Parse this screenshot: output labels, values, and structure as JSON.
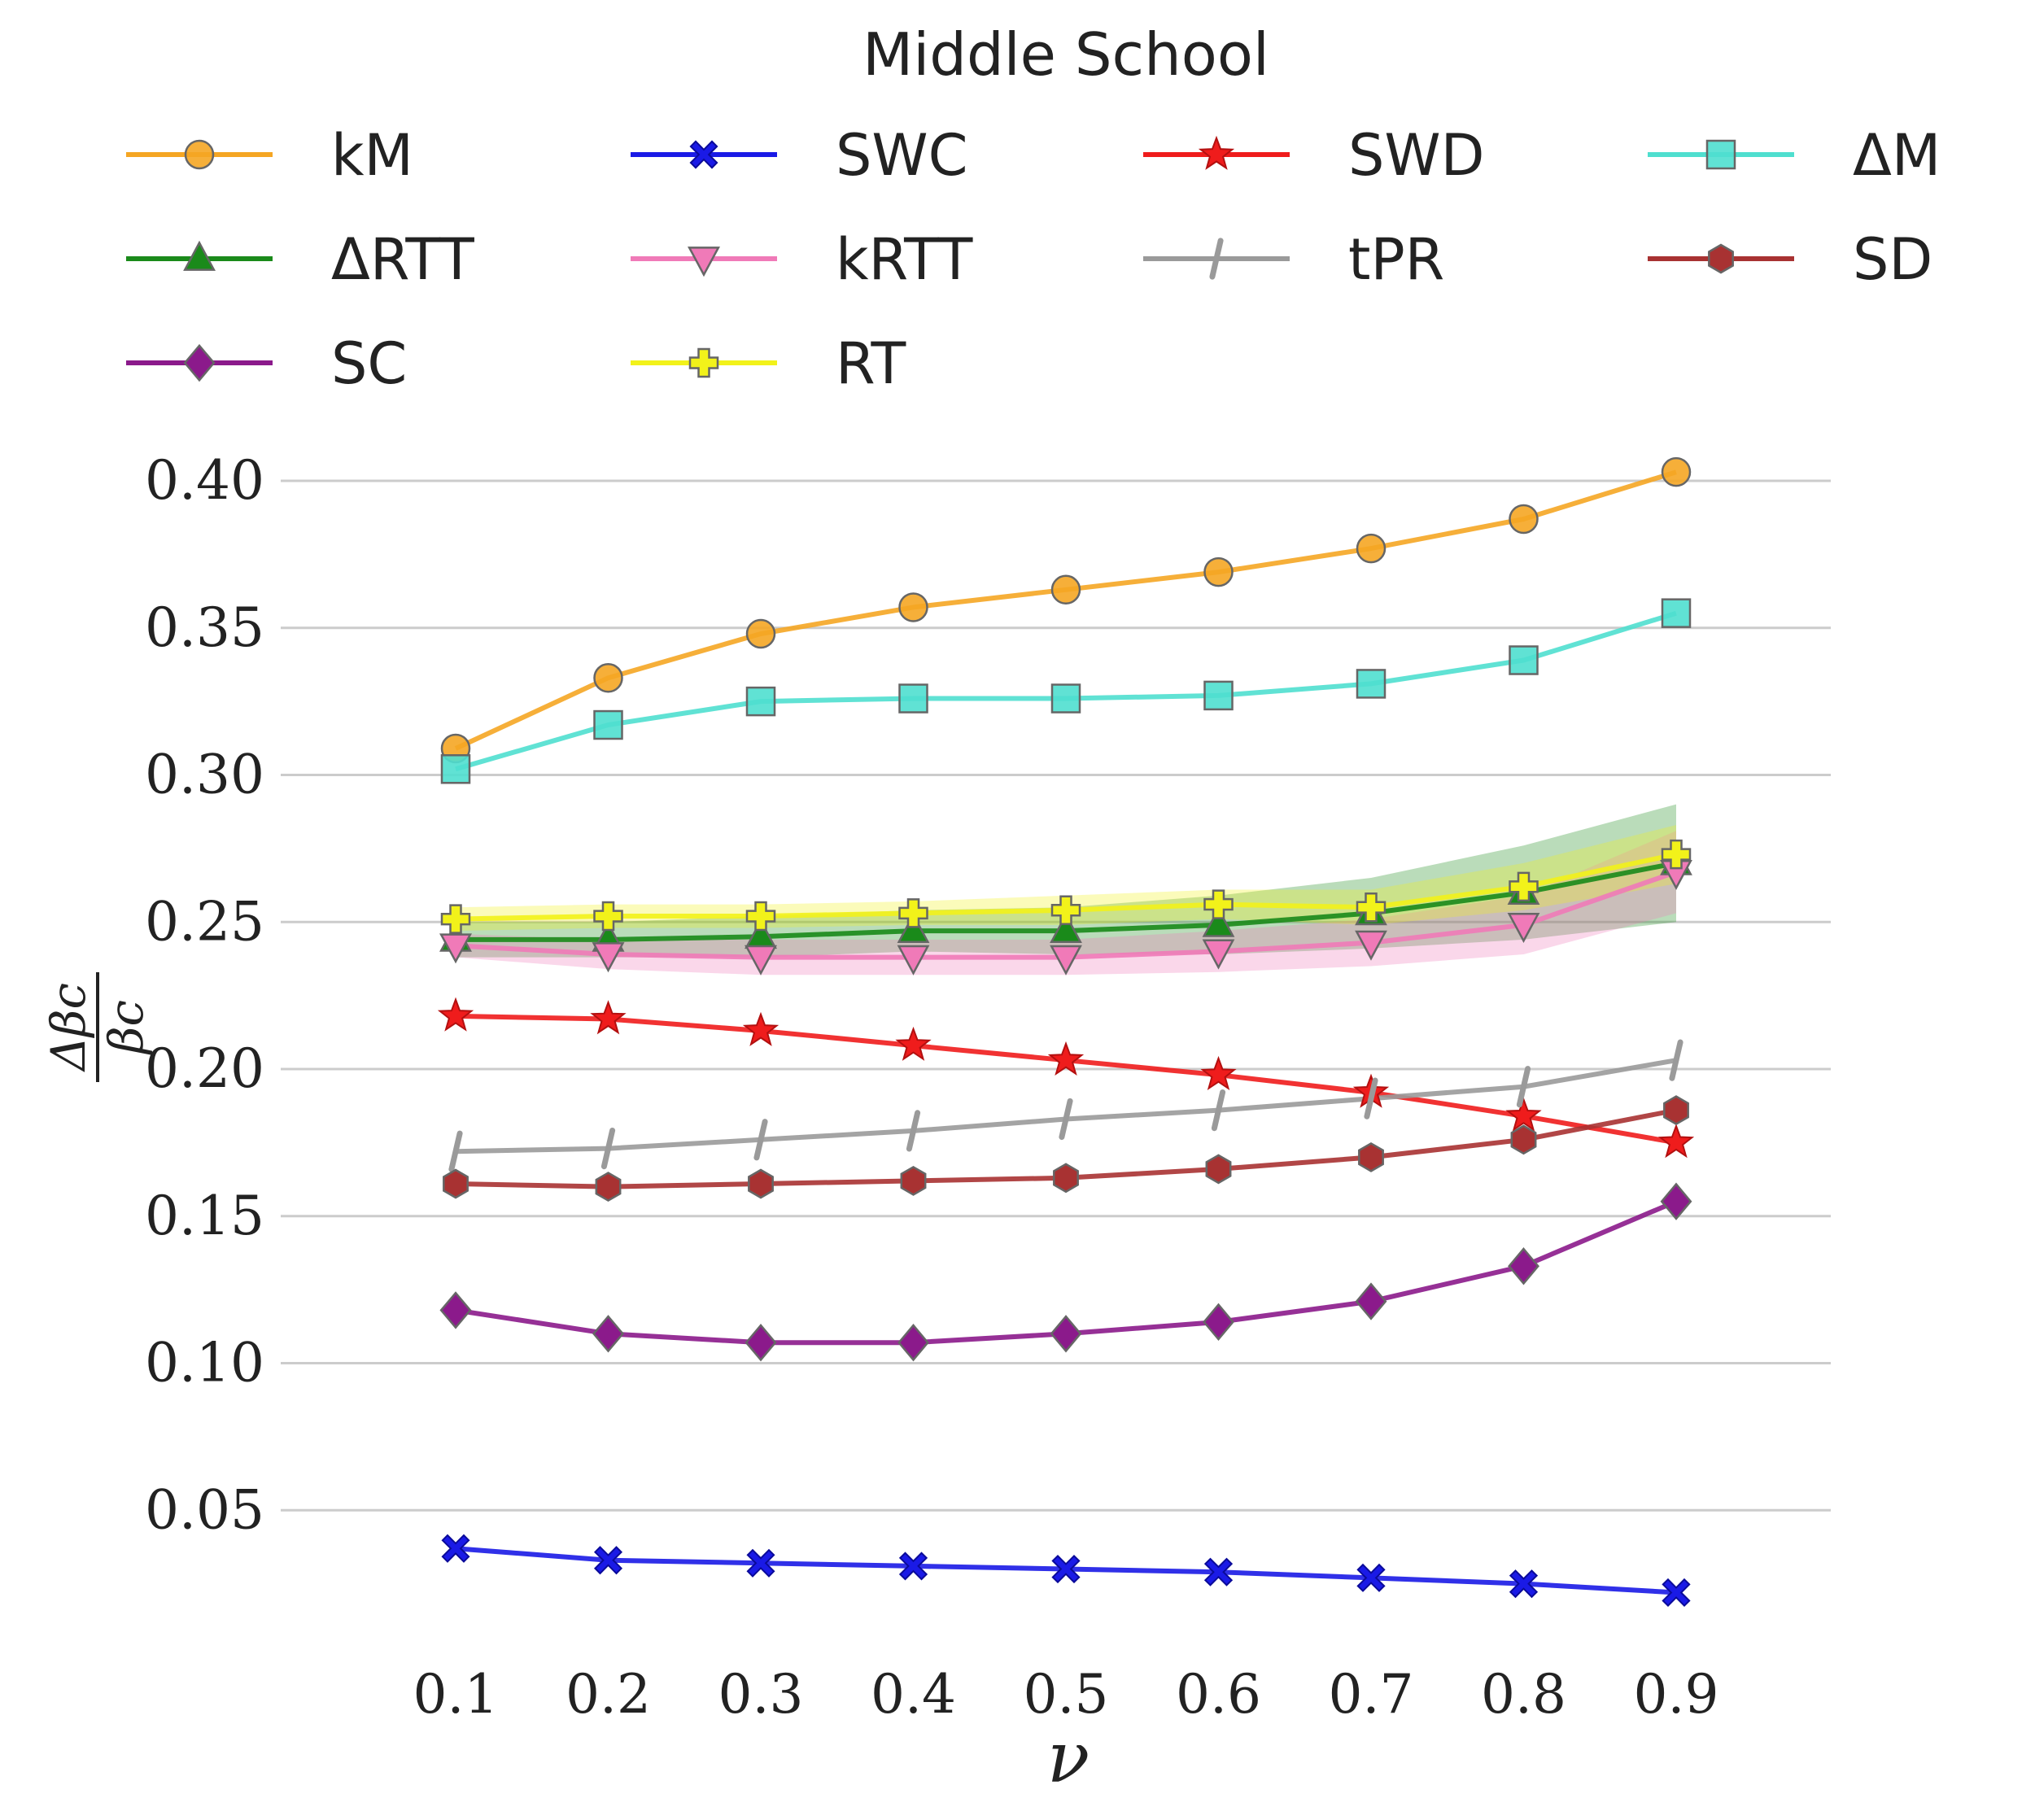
{
  "chart_data": {
    "type": "line",
    "title": "Middle School",
    "xlabel": "ν",
    "ylabel": "Δβc / βc",
    "ylabel_num": "Δβc",
    "ylabel_den": "βc",
    "x": [
      0.1,
      0.2,
      0.3,
      0.4,
      0.5,
      0.6,
      0.7,
      0.8,
      0.9
    ],
    "xtick_labels": [
      "0.1",
      "0.2",
      "0.3",
      "0.4",
      "0.5",
      "0.6",
      "0.7",
      "0.8",
      "0.9"
    ],
    "yticks": [
      0.05,
      0.1,
      0.15,
      0.2,
      0.25,
      0.3,
      0.35,
      0.4
    ],
    "ytick_labels": [
      "0.05",
      "0.10",
      "0.15",
      "0.20",
      "0.25",
      "0.30",
      "0.35",
      "0.40"
    ],
    "ylim": [
      0.0,
      0.415
    ],
    "grid": "horizontal",
    "legend_position": "top",
    "series": [
      {
        "name": "kM",
        "color": "#f5a623",
        "marker": "circle",
        "values": [
          0.309,
          0.333,
          0.348,
          0.357,
          0.363,
          0.369,
          0.377,
          0.387,
          0.403
        ]
      },
      {
        "name": "ΔRTT",
        "color": "#1a8a1a",
        "marker": "triangle-up",
        "values": [
          0.244,
          0.244,
          0.245,
          0.247,
          0.247,
          0.249,
          0.253,
          0.26,
          0.27
        ],
        "band": [
          0.006,
          0.006,
          0.007,
          0.007,
          0.008,
          0.01,
          0.012,
          0.016,
          0.02
        ]
      },
      {
        "name": "SC",
        "color": "#8b1a8b",
        "marker": "diamond",
        "values": [
          0.118,
          0.11,
          0.107,
          0.107,
          0.11,
          0.114,
          0.121,
          0.133,
          0.155
        ]
      },
      {
        "name": "SWC",
        "color": "#1a1ae6",
        "marker": "x",
        "values": [
          0.037,
          0.033,
          0.032,
          0.031,
          0.03,
          0.029,
          0.027,
          0.025,
          0.022
        ]
      },
      {
        "name": "kRTT",
        "color": "#f07ab8",
        "marker": "triangle-down",
        "values": [
          0.242,
          0.239,
          0.238,
          0.238,
          0.238,
          0.24,
          0.243,
          0.249,
          0.267
        ],
        "band": [
          0.004,
          0.005,
          0.006,
          0.006,
          0.006,
          0.007,
          0.008,
          0.01,
          0.014
        ]
      },
      {
        "name": "RT",
        "color": "#f2f21a",
        "marker": "plus",
        "values": [
          0.251,
          0.252,
          0.252,
          0.253,
          0.254,
          0.256,
          0.255,
          0.262,
          0.273
        ],
        "band": [
          0.004,
          0.004,
          0.004,
          0.004,
          0.005,
          0.005,
          0.006,
          0.008,
          0.01
        ]
      },
      {
        "name": "SWD",
        "color": "#ef1c1c",
        "marker": "star",
        "values": [
          0.218,
          0.217,
          0.213,
          0.208,
          0.203,
          0.198,
          0.192,
          0.184,
          0.175
        ]
      },
      {
        "name": "tPR",
        "color": "#9a9a9a",
        "marker": "slash",
        "values": [
          0.172,
          0.173,
          0.176,
          0.179,
          0.183,
          0.186,
          0.19,
          0.194,
          0.203
        ]
      },
      {
        "name": "ΔM",
        "color": "#4fdfcf",
        "marker": "square",
        "values": [
          0.302,
          0.317,
          0.325,
          0.326,
          0.326,
          0.327,
          0.331,
          0.339,
          0.355
        ]
      },
      {
        "name": "SD",
        "color": "#a83232",
        "marker": "hexagon",
        "values": [
          0.161,
          0.16,
          0.161,
          0.162,
          0.163,
          0.166,
          0.17,
          0.176,
          0.186
        ]
      }
    ]
  }
}
